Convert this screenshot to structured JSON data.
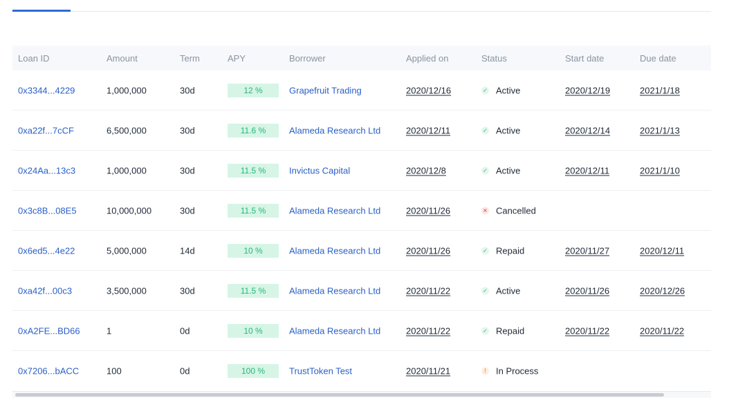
{
  "columns": {
    "loan_id": "Loan ID",
    "amount": "Amount",
    "term": "Term",
    "apy": "APY",
    "borrower": "Borrower",
    "applied_on": "Applied on",
    "status": "Status",
    "start_date": "Start date",
    "due_date": "Due date"
  },
  "colors": {
    "accent": "#2d6bd6",
    "link": "#2a5fc7",
    "apy_bg": "#d6f5e6",
    "apy_text": "#28b578",
    "cancel": "#e23c3c",
    "process": "#f08a2a"
  },
  "rows": [
    {
      "id": "0x3344...4229",
      "amount": "1,000,000",
      "term": "30d",
      "apy": "12 %",
      "borrower": "Grapefruit Trading",
      "applied": "2020/12/16",
      "status": "Active",
      "status_icon": "check-icon",
      "start": "2020/12/19",
      "due": "2021/1/18"
    },
    {
      "id": "0xa22f...7cCF",
      "amount": "6,500,000",
      "term": "30d",
      "apy": "11.6 %",
      "borrower": "Alameda Research Ltd",
      "applied": "2020/12/11",
      "status": "Active",
      "status_icon": "check-icon",
      "start": "2020/12/14",
      "due": "2021/1/13"
    },
    {
      "id": "0x24Aa...13c3",
      "amount": "1,000,000",
      "term": "30d",
      "apy": "11.5 %",
      "borrower": "Invictus Capital",
      "applied": "2020/12/8",
      "status": "Active",
      "status_icon": "check-icon",
      "start": "2020/12/11",
      "due": "2021/1/10"
    },
    {
      "id": "0x3c8B...08E5",
      "amount": "10,000,000",
      "term": "30d",
      "apy": "11.5 %",
      "borrower": "Alameda Research Ltd",
      "applied": "2020/11/26",
      "status": "Cancelled",
      "status_icon": "cross-icon",
      "start": "",
      "due": ""
    },
    {
      "id": "0x6ed5...4e22",
      "amount": "5,000,000",
      "term": "14d",
      "apy": "10 %",
      "borrower": "Alameda Research Ltd",
      "applied": "2020/11/26",
      "status": "Repaid",
      "status_icon": "check-icon",
      "start": "2020/11/27",
      "due": "2020/12/11"
    },
    {
      "id": "0xa42f...00c3",
      "amount": "3,500,000",
      "term": "30d",
      "apy": "11.5 %",
      "borrower": "Alameda Research Ltd",
      "applied": "2020/11/22",
      "status": "Active",
      "status_icon": "check-icon",
      "start": "2020/11/26",
      "due": "2020/12/26"
    },
    {
      "id": "0xA2FE...BD66",
      "amount": "1",
      "term": "0d",
      "apy": "10 %",
      "borrower": "Alameda Research Ltd",
      "applied": "2020/11/22",
      "status": "Repaid",
      "status_icon": "check-icon",
      "start": "2020/11/22",
      "due": "2020/11/22"
    },
    {
      "id": "0x7206...bACC",
      "amount": "100",
      "term": "0d",
      "apy": "100 %",
      "borrower": "TrustToken Test",
      "applied": "2020/11/21",
      "status": "In Process",
      "status_icon": "exclamation-icon",
      "start": "",
      "due": ""
    }
  ]
}
